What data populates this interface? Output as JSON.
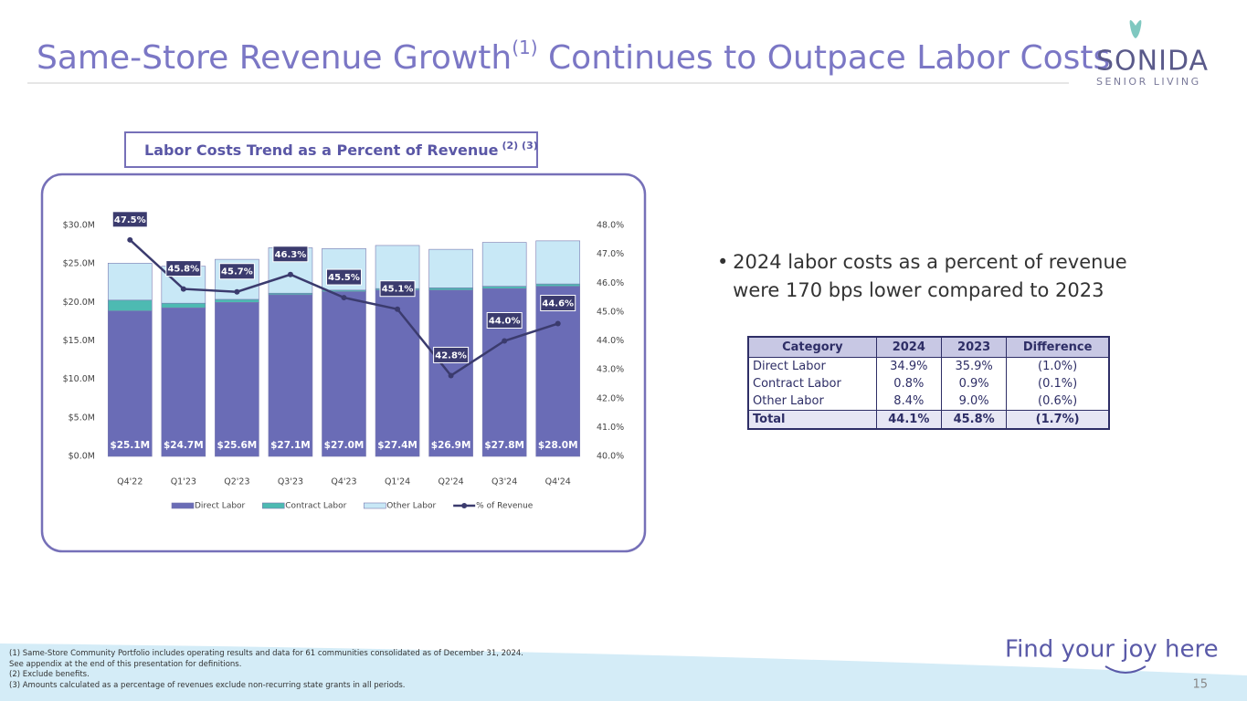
{
  "header": {
    "title_parts": [
      "Same-Store Revenue Growth",
      "(1)",
      " Continues to Outpace Labor Costs"
    ],
    "logo": "SONIDA",
    "logo_sub": "SENIOR LIVING"
  },
  "chart_heading": {
    "text": "Labor Costs Trend as a Percent of Revenue",
    "refs": "(2) (3)"
  },
  "chart_data": {
    "type": "bar",
    "stacked": true,
    "categories": [
      "Q4'22",
      "Q1'23",
      "Q2'23",
      "Q3'23",
      "Q4'23",
      "Q1'24",
      "Q2'24",
      "Q3'24",
      "Q4'24"
    ],
    "series": [
      {
        "name": "Direct Labor",
        "color": "#6a6cb6",
        "values": [
          18.9,
          19.3,
          20.0,
          21.0,
          21.4,
          21.6,
          21.6,
          21.8,
          22.1
        ]
      },
      {
        "name": "Contract Labor",
        "color": "#4dbab2",
        "values": [
          1.4,
          0.6,
          0.4,
          0.2,
          0.2,
          0.2,
          0.3,
          0.3,
          0.3
        ]
      },
      {
        "name": "Other Labor",
        "color": "#c8e8f6",
        "values": [
          4.8,
          4.8,
          5.2,
          5.9,
          5.4,
          5.6,
          5.0,
          5.7,
          5.6
        ]
      },
      {
        "name": "% of Revenue",
        "type": "line",
        "axis": "y2",
        "color": "#3b3b6e",
        "values": [
          47.5,
          45.8,
          45.7,
          46.3,
          45.5,
          45.1,
          42.8,
          44.0,
          44.6
        ],
        "value_labels": [
          "47.5%",
          "45.8%",
          "45.7%",
          "46.3%",
          "45.5%",
          "45.1%",
          "42.8%",
          "44.0%",
          "44.6%"
        ]
      }
    ],
    "bar_labels": {
      "values": [
        25.1,
        24.7,
        25.6,
        27.1,
        27.0,
        27.4,
        26.9,
        27.8,
        28.0
      ],
      "value_labels": [
        "$25.1M",
        "$24.7M",
        "$25.6M",
        "$27.1M",
        "$27.0M",
        "$27.4M",
        "$26.9M",
        "$27.8M",
        "$28.0M"
      ]
    },
    "ylim": [
      0,
      30
    ],
    "yticks": [
      {
        "value": 0,
        "label": "$0.0M"
      },
      {
        "value": 5,
        "label": "$5.0M"
      },
      {
        "value": 10,
        "label": "$10.0M"
      },
      {
        "value": 15,
        "label": "$15.0M"
      },
      {
        "value": 20,
        "label": "$20.0M"
      },
      {
        "value": 25,
        "label": "$25.0M"
      },
      {
        "value": 30,
        "label": "$30.0M"
      }
    ],
    "y2lim": [
      40,
      48
    ],
    "y2ticks": [
      {
        "value": 40,
        "label": "40.0%"
      },
      {
        "value": 41,
        "label": "41.0%"
      },
      {
        "value": 42,
        "label": "42.0%"
      },
      {
        "value": 43,
        "label": "43.0%"
      },
      {
        "value": 44,
        "label": "44.0%"
      },
      {
        "value": 45,
        "label": "45.0%"
      },
      {
        "value": 46,
        "label": "46.0%"
      },
      {
        "value": 47,
        "label": "47.0%"
      },
      {
        "value": 48,
        "label": "48.0%"
      }
    ],
    "legend": "bottom"
  },
  "bullet": "2024 labor costs as a percent of revenue were 170 bps lower compared to 2023",
  "table": {
    "header": [
      "Category",
      "2024",
      "2023",
      "Difference"
    ],
    "rows": [
      [
        "Direct Labor",
        "34.9%",
        "35.9%",
        "(1.0%)"
      ],
      [
        "Contract Labor",
        "0.8%",
        "0.9%",
        "(0.1%)"
      ],
      [
        "Other Labor",
        "8.4%",
        "9.0%",
        "(0.6%)"
      ],
      [
        "Total",
        "44.1%",
        "45.8%",
        "(1.7%)"
      ]
    ]
  },
  "footnotes": [
    "(1) Same-Store Community Portfolio includes operating results and data for 61 communities consolidated as of December 31, 2024.",
    "See appendix at the end of this presentation for definitions.",
    "(2) Exclude benefits.",
    "(3) Amounts calculated as a percentage of revenues exclude non-recurring state grants in all periods."
  ],
  "tagline": "Find your joy here",
  "page_number": "15"
}
